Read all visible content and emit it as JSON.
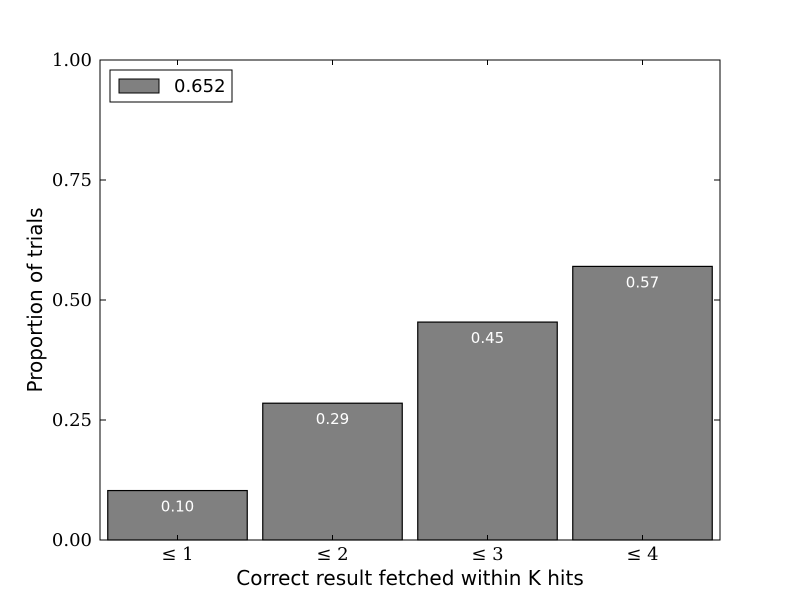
{
  "chart_data": {
    "type": "bar",
    "categories": [
      "≤ 1",
      "≤ 2",
      "≤ 3",
      "≤ 4"
    ],
    "series": [
      {
        "name": "0.652",
        "values": [
          0.103,
          0.285,
          0.454,
          0.57
        ],
        "color": "#808080"
      }
    ],
    "data_labels": [
      "0.10",
      "0.29",
      "0.45",
      "0.57"
    ],
    "xlabel": "Correct result fetched within K hits",
    "ylabel": "Proportion of trials",
    "ylim": [
      0,
      1.0
    ],
    "yticks": [
      "0.00",
      "0.25",
      "0.50",
      "0.75",
      "1.00"
    ],
    "ytick_values": [
      0,
      0.25,
      0.5,
      0.75,
      1.0
    ],
    "legend": {
      "label": "0.652",
      "placement": "top-left"
    },
    "grid": false
  }
}
